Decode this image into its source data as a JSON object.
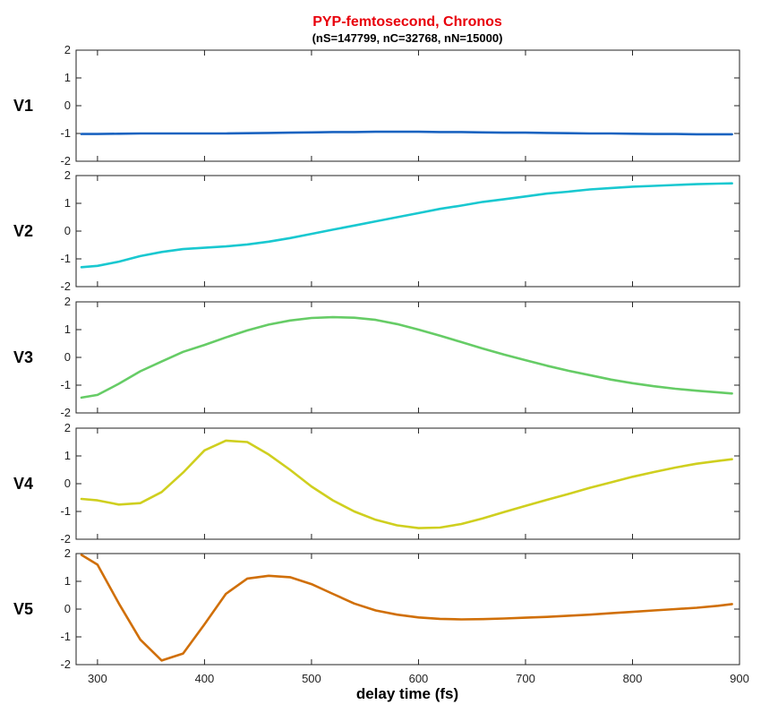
{
  "figure": {
    "title": "PYP-femtosecond, Chronos",
    "subtitle": "(nS=147799, nC=32768, nN=15000)",
    "xlabel": "delay time (fs)"
  },
  "chart_data": {
    "type": "line",
    "title": "PYP-femtosecond, Chronos",
    "subtitle": "(nS=147799, nC=32768, nN=15000)",
    "xlabel": "delay time (fs)",
    "xlim": [
      280,
      900
    ],
    "ylim": [
      -2,
      2
    ],
    "xticks": [
      300,
      400,
      500,
      600,
      700,
      800,
      900
    ],
    "yticks": [
      2,
      1,
      0,
      -1,
      -2
    ],
    "grid": false,
    "title_color": "#e8000b",
    "x": [
      285,
      300,
      320,
      340,
      360,
      380,
      400,
      420,
      440,
      460,
      480,
      500,
      520,
      540,
      560,
      580,
      600,
      620,
      640,
      660,
      680,
      700,
      720,
      740,
      760,
      780,
      800,
      820,
      840,
      860,
      880,
      893
    ],
    "series": [
      {
        "name": "V1",
        "color": "#1a63c0",
        "values": [
          -1.02,
          -1.02,
          -1.01,
          -1.0,
          -1.0,
          -1.0,
          -1.0,
          -1.0,
          -0.99,
          -0.98,
          -0.97,
          -0.96,
          -0.95,
          -0.95,
          -0.94,
          -0.94,
          -0.94,
          -0.95,
          -0.95,
          -0.96,
          -0.97,
          -0.97,
          -0.98,
          -0.99,
          -1.0,
          -1.0,
          -1.01,
          -1.02,
          -1.02,
          -1.03,
          -1.03,
          -1.03
        ]
      },
      {
        "name": "V2",
        "color": "#19c8d0",
        "values": [
          -1.3,
          -1.25,
          -1.1,
          -0.9,
          -0.75,
          -0.65,
          -0.6,
          -0.55,
          -0.48,
          -0.38,
          -0.25,
          -0.1,
          0.05,
          0.2,
          0.35,
          0.5,
          0.65,
          0.8,
          0.92,
          1.05,
          1.15,
          1.25,
          1.35,
          1.42,
          1.5,
          1.55,
          1.6,
          1.63,
          1.66,
          1.69,
          1.71,
          1.72
        ]
      },
      {
        "name": "V3",
        "color": "#66cc66",
        "values": [
          -1.45,
          -1.35,
          -0.95,
          -0.5,
          -0.15,
          0.2,
          0.45,
          0.72,
          0.97,
          1.18,
          1.33,
          1.42,
          1.45,
          1.43,
          1.35,
          1.2,
          1.0,
          0.78,
          0.55,
          0.32,
          0.1,
          -0.1,
          -0.3,
          -0.48,
          -0.64,
          -0.8,
          -0.93,
          -1.04,
          -1.13,
          -1.2,
          -1.26,
          -1.3
        ]
      },
      {
        "name": "V4",
        "color": "#cfcf1f",
        "values": [
          -0.55,
          -0.6,
          -0.75,
          -0.7,
          -0.3,
          0.4,
          1.2,
          1.55,
          1.5,
          1.05,
          0.5,
          -0.1,
          -0.6,
          -1.0,
          -1.3,
          -1.5,
          -1.6,
          -1.58,
          -1.45,
          -1.25,
          -1.02,
          -0.8,
          -0.58,
          -0.37,
          -0.15,
          0.05,
          0.25,
          0.42,
          0.58,
          0.72,
          0.82,
          0.88
        ]
      },
      {
        "name": "V5",
        "color": "#d06f08",
        "values": [
          1.95,
          1.6,
          0.2,
          -1.1,
          -1.85,
          -1.6,
          -0.55,
          0.55,
          1.1,
          1.2,
          1.15,
          0.9,
          0.55,
          0.2,
          -0.05,
          -0.2,
          -0.3,
          -0.35,
          -0.37,
          -0.36,
          -0.34,
          -0.31,
          -0.28,
          -0.24,
          -0.2,
          -0.15,
          -0.1,
          -0.05,
          0.0,
          0.05,
          0.12,
          0.18
        ]
      }
    ]
  }
}
